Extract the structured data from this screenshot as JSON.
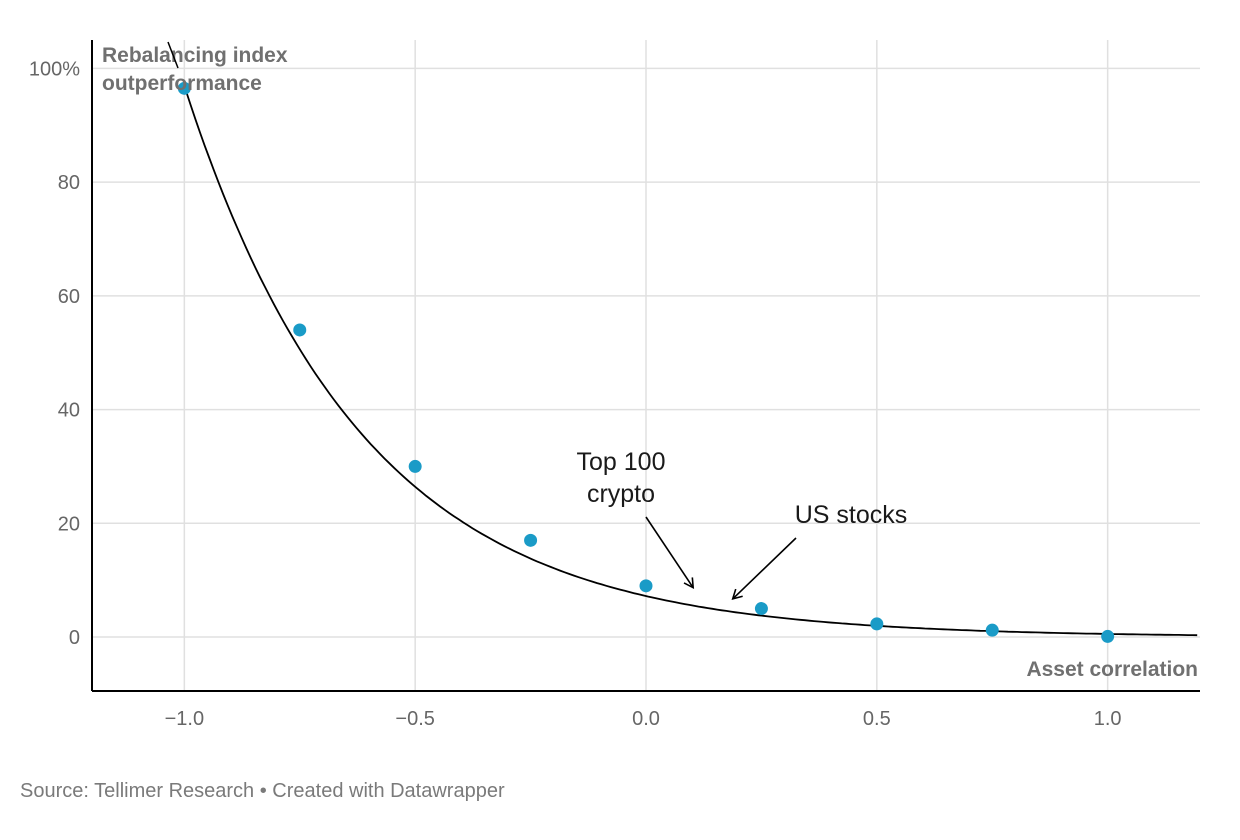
{
  "chart_data": {
    "type": "scatter",
    "y_axis_title": [
      "Rebalancing index",
      "outperformance"
    ],
    "x_axis_title": "Asset correlation",
    "xlim": [
      -1.2,
      1.2
    ],
    "ylim": [
      -9.5,
      105
    ],
    "x_ticks": [
      -1.0,
      -0.5,
      0.0,
      0.5,
      1.0
    ],
    "x_tick_labels": [
      "−1.0",
      "−0.5",
      "0.0",
      "0.5",
      "1.0"
    ],
    "y_ticks": [
      0,
      20,
      40,
      60,
      80,
      100
    ],
    "y_tick_labels": [
      "0",
      "20",
      "40",
      "60",
      "80",
      "100%"
    ],
    "grid": true,
    "points": {
      "x": [
        -1.0,
        -0.75,
        -0.5,
        -0.25,
        0.0,
        0.25,
        0.5,
        0.75,
        1.0
      ],
      "y": [
        96.5,
        54,
        30,
        17,
        9,
        5,
        2.3,
        1.2,
        0.1
      ]
    },
    "fit_curve": {
      "type": "exponential",
      "a": 7.2,
      "b": -2.6
    },
    "annotations": [
      {
        "text": [
          "Top 100",
          "crypto"
        ],
        "target_x": 0.1,
        "target_y": 8.5
      },
      {
        "text": [
          "US stocks"
        ],
        "target_x": 0.19,
        "target_y": 6.7
      }
    ],
    "colors": {
      "points": "#1a9bc7",
      "curve": "#000000",
      "grid": "#e0e0e0",
      "axis": "#000000"
    }
  },
  "footer": {
    "source": "Source: Tellimer Research • Created with Datawrapper"
  }
}
